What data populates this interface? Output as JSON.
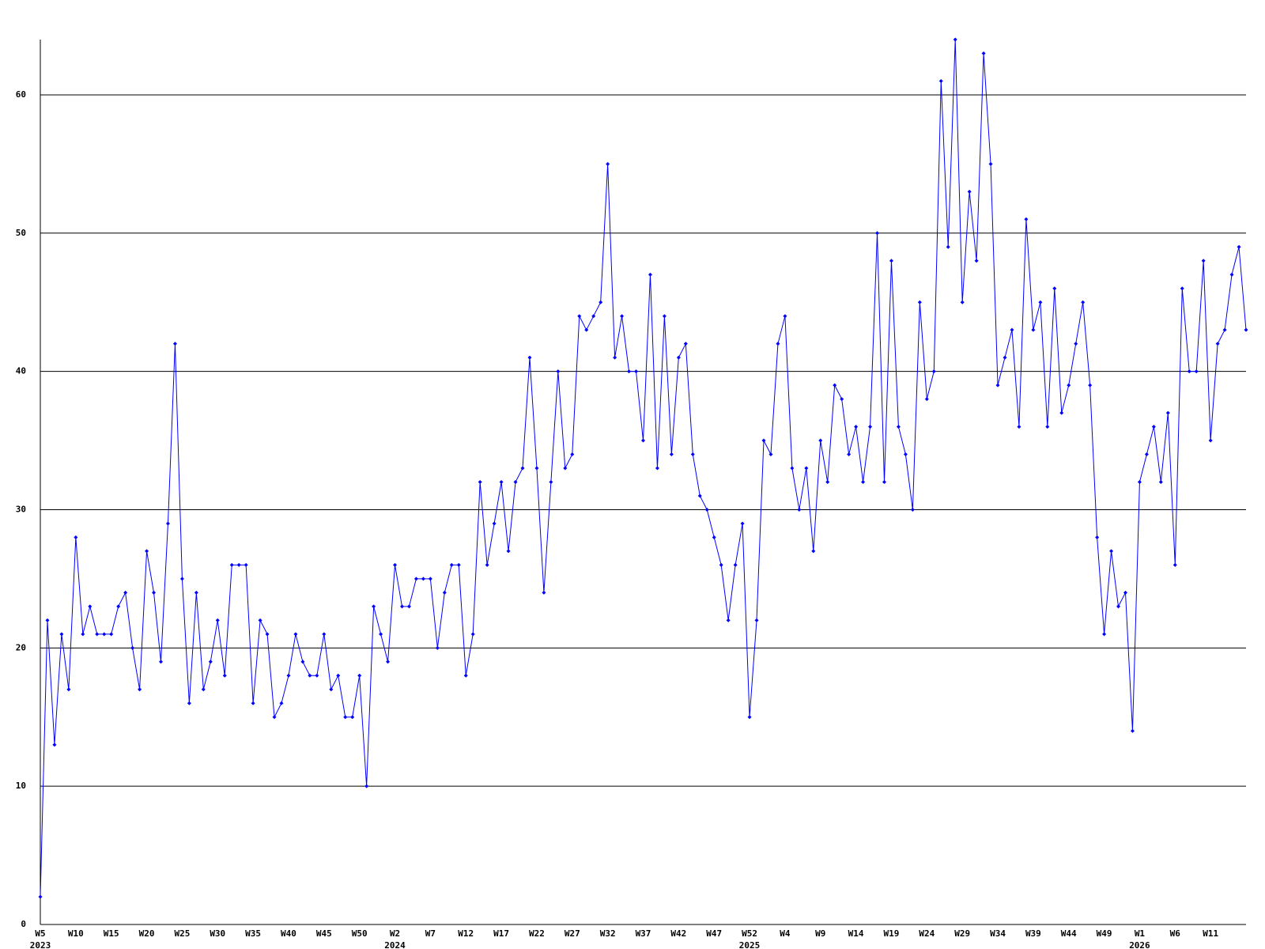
{
  "chart_data": {
    "type": "line",
    "categories": [
      "W5",
      null,
      null,
      null,
      null,
      "W10",
      null,
      null,
      null,
      null,
      "W15",
      null,
      null,
      null,
      null,
      "W20",
      null,
      null,
      null,
      null,
      "W25",
      null,
      null,
      null,
      null,
      "W30",
      null,
      null,
      null,
      null,
      "W35",
      null,
      null,
      null,
      null,
      "W40",
      null,
      null,
      null,
      null,
      "W45",
      null,
      null,
      null,
      null,
      "W50",
      null,
      null,
      null,
      null,
      "W2",
      null,
      null,
      null,
      null,
      "W7",
      null,
      null,
      null,
      null,
      "W12",
      null,
      null,
      null,
      null,
      "W17",
      null,
      null,
      null,
      null,
      "W22",
      null,
      null,
      null,
      null,
      "W27",
      null,
      null,
      null,
      null,
      "W32",
      null,
      null,
      null,
      null,
      "W37",
      null,
      null,
      null,
      null,
      "W42",
      null,
      null,
      null,
      null,
      "W47",
      null,
      null,
      null,
      null,
      "W52",
      null,
      null,
      null,
      null,
      "W4",
      null,
      null,
      null,
      null,
      "W9",
      null,
      null,
      null,
      null,
      "W14",
      null,
      null,
      null,
      null,
      "W19",
      null,
      null,
      null,
      null,
      "W24",
      null,
      null,
      null,
      null,
      "W29",
      null,
      null,
      null,
      null,
      "W34",
      null,
      null,
      null,
      null,
      "W39",
      null,
      null,
      null,
      null,
      "W44",
      null,
      null,
      null,
      null,
      "W49",
      null,
      null,
      null,
      null,
      "W1",
      null,
      null,
      null,
      null,
      "W6",
      null,
      null,
      null,
      null,
      "W11",
      null,
      null,
      null,
      null,
      null
    ],
    "year_labels": [
      "2023",
      null,
      null,
      null,
      null,
      null,
      null,
      null,
      null,
      null,
      null,
      null,
      null,
      null,
      null,
      null,
      null,
      null,
      null,
      null,
      null,
      null,
      null,
      null,
      null,
      null,
      null,
      null,
      null,
      null,
      null,
      null,
      null,
      null,
      null,
      null,
      null,
      null,
      null,
      null,
      null,
      null,
      null,
      null,
      null,
      null,
      null,
      null,
      null,
      null,
      "2024",
      null,
      null,
      null,
      null,
      null,
      null,
      null,
      null,
      null,
      null,
      null,
      null,
      null,
      null,
      null,
      null,
      null,
      null,
      null,
      null,
      null,
      null,
      null,
      null,
      null,
      null,
      null,
      null,
      null,
      null,
      null,
      null,
      null,
      null,
      null,
      null,
      null,
      null,
      null,
      null,
      null,
      null,
      null,
      null,
      null,
      null,
      null,
      null,
      null,
      "2025",
      null,
      null,
      null,
      null,
      null,
      null,
      null,
      null,
      null,
      null,
      null,
      null,
      null,
      null,
      null,
      null,
      null,
      null,
      null,
      null,
      null,
      null,
      null,
      null,
      null,
      null,
      null,
      null,
      null,
      null,
      null,
      null,
      null,
      null,
      null,
      null,
      null,
      null,
      null,
      null,
      null,
      null,
      null,
      null,
      null,
      null,
      null,
      null,
      null,
      null,
      null,
      null,
      null,
      null,
      "2026",
      null,
      null,
      null,
      null,
      null,
      null,
      null,
      null,
      null,
      null,
      null,
      null,
      null,
      null,
      null
    ],
    "series": [
      {
        "color": "#0000ff",
        "values": [
          2,
          22,
          13,
          21,
          17,
          28,
          21,
          23,
          21,
          21,
          21,
          23,
          24,
          20,
          17,
          27,
          24,
          19,
          29,
          42,
          25,
          16,
          24,
          17,
          19,
          22,
          18,
          26,
          26,
          26,
          16,
          22,
          21,
          15,
          16,
          18,
          21,
          19,
          18,
          18,
          21,
          17,
          18,
          15,
          15,
          18,
          10,
          23,
          21,
          19,
          26,
          23,
          23,
          25,
          25,
          25,
          20,
          24,
          26,
          26,
          18,
          21,
          32,
          26,
          29,
          32,
          27,
          32,
          33,
          41,
          33,
          24,
          32,
          40,
          33,
          34,
          44,
          43,
          44,
          45,
          55,
          41,
          44,
          40,
          40,
          35,
          47,
          33,
          44,
          34,
          41,
          42,
          34,
          31,
          30,
          28,
          26,
          22,
          26,
          29,
          15,
          22,
          35,
          34,
          42,
          44,
          33,
          30,
          33,
          27,
          35,
          32,
          39,
          38,
          34,
          36,
          32,
          36,
          50,
          32,
          48,
          36,
          34,
          30,
          45,
          38,
          40,
          61,
          49,
          64,
          45,
          53,
          48,
          63,
          55,
          39,
          41,
          43,
          36,
          51,
          43,
          45,
          36,
          46,
          37,
          39,
          42,
          45,
          39,
          28,
          21,
          27,
          23,
          24,
          14,
          32,
          34,
          36,
          32,
          37,
          26,
          46,
          40,
          40,
          48,
          35,
          42,
          43,
          47,
          49,
          43
        ]
      }
    ],
    "ylim": [
      0,
      64
    ],
    "yticks": [
      0,
      10,
      20,
      30,
      40,
      50,
      60
    ],
    "grid": true
  }
}
